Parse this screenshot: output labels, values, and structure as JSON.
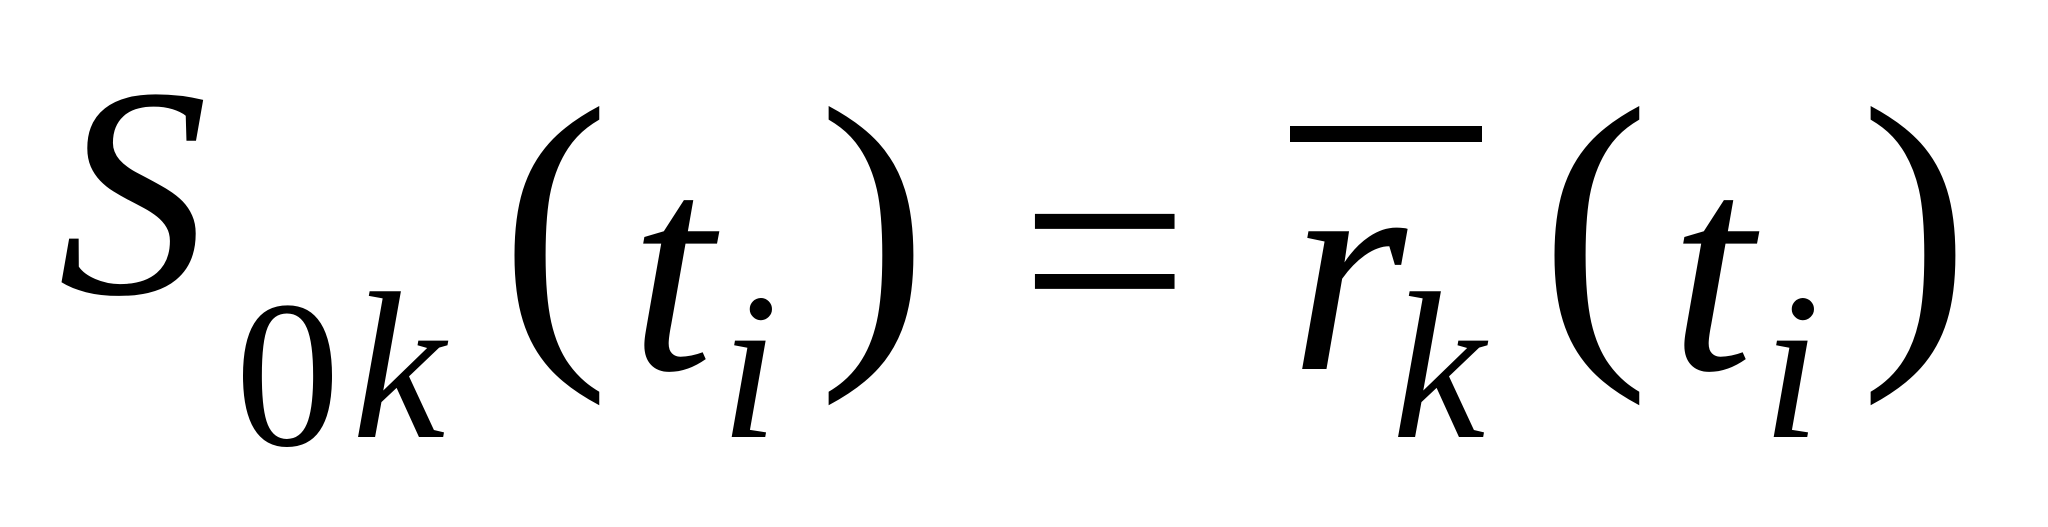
{
  "formula": {
    "lhs": {
      "symbol": "S",
      "subscript_digit": "0",
      "subscript_var": "k",
      "open_paren": "(",
      "arg": "t",
      "arg_subscript": "i",
      "close_paren": ")"
    },
    "equals": "=",
    "rhs": {
      "symbol": "r",
      "subscript": "k",
      "open_paren": "(",
      "arg": "t",
      "arg_subscript": "i",
      "close_paren": ")"
    }
  }
}
